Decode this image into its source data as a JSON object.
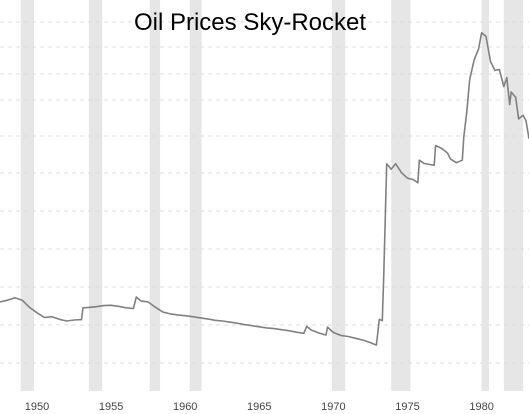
{
  "chart_data": {
    "type": "line",
    "title": "Oil Prices Sky-Rocket",
    "xlabel": "",
    "ylabel": "",
    "xlim": [
      1947.5,
      1983.2
    ],
    "ylim": [
      0,
      100
    ],
    "grid": true,
    "line_color": "#808080",
    "recession_color": "#e6e6e6",
    "grid_color": "#dddddd",
    "x_ticks": [
      {
        "value": 1950,
        "label": "1950"
      },
      {
        "value": 1955,
        "label": "1955"
      },
      {
        "value": 1960,
        "label": "1960"
      },
      {
        "value": 1965,
        "label": "1965"
      },
      {
        "value": 1970,
        "label": "1970"
      },
      {
        "value": 1975,
        "label": "1975"
      },
      {
        "value": 1980,
        "label": "1980"
      }
    ],
    "recessions": [
      [
        1948.9,
        1949.8
      ],
      [
        1953.5,
        1954.4
      ],
      [
        1957.6,
        1958.3
      ],
      [
        1960.3,
        1961.1
      ],
      [
        1969.9,
        1970.8
      ],
      [
        1973.9,
        1975.2
      ],
      [
        1980.0,
        1980.5
      ],
      [
        1981.5,
        1982.8
      ]
    ],
    "series": [
      {
        "values": [
          [
            1947.5,
            22.0
          ],
          [
            1948.0,
            22.5
          ],
          [
            1948.5,
            23.2
          ],
          [
            1949.0,
            22.5
          ],
          [
            1949.5,
            20.5
          ],
          [
            1950.0,
            19.0
          ],
          [
            1950.5,
            17.7
          ],
          [
            1951.0,
            17.9
          ],
          [
            1951.5,
            17.2
          ],
          [
            1952.0,
            16.7
          ],
          [
            1952.5,
            17.0
          ],
          [
            1953.0,
            17.1
          ],
          [
            1953.1,
            20.4
          ],
          [
            1953.5,
            20.5
          ],
          [
            1954.0,
            20.7
          ],
          [
            1954.5,
            21.0
          ],
          [
            1955.0,
            21.1
          ],
          [
            1955.5,
            20.8
          ],
          [
            1956.0,
            20.4
          ],
          [
            1956.5,
            20.2
          ],
          [
            1956.7,
            23.4
          ],
          [
            1957.0,
            22.3
          ],
          [
            1957.5,
            22.0
          ],
          [
            1958.0,
            20.5
          ],
          [
            1958.5,
            19.2
          ],
          [
            1959.0,
            18.7
          ],
          [
            1959.5,
            18.4
          ],
          [
            1960.0,
            18.2
          ],
          [
            1960.5,
            17.9
          ],
          [
            1961.0,
            17.6
          ],
          [
            1961.5,
            17.3
          ],
          [
            1962.0,
            16.9
          ],
          [
            1962.5,
            16.7
          ],
          [
            1963.0,
            16.4
          ],
          [
            1963.5,
            16.1
          ],
          [
            1964.0,
            15.7
          ],
          [
            1964.5,
            15.4
          ],
          [
            1965.0,
            15.1
          ],
          [
            1965.5,
            14.8
          ],
          [
            1966.0,
            14.6
          ],
          [
            1966.5,
            14.3
          ],
          [
            1967.0,
            14.0
          ],
          [
            1967.5,
            13.6
          ],
          [
            1968.0,
            13.3
          ],
          [
            1968.2,
            15.2
          ],
          [
            1968.5,
            14.2
          ],
          [
            1969.0,
            13.4
          ],
          [
            1969.5,
            12.8
          ],
          [
            1969.6,
            15.0
          ],
          [
            1970.0,
            13.5
          ],
          [
            1970.5,
            12.7
          ],
          [
            1971.0,
            12.4
          ],
          [
            1971.5,
            11.9
          ],
          [
            1972.0,
            11.4
          ],
          [
            1972.5,
            10.7
          ],
          [
            1972.9,
            10.0
          ],
          [
            1973.1,
            17.2
          ],
          [
            1973.3,
            16.8
          ],
          [
            1973.4,
            30.0
          ],
          [
            1973.6,
            60.5
          ],
          [
            1973.9,
            59.0
          ],
          [
            1974.2,
            60.5
          ],
          [
            1974.6,
            58.0
          ],
          [
            1975.0,
            56.5
          ],
          [
            1975.4,
            56.1
          ],
          [
            1975.7,
            55.2
          ],
          [
            1975.8,
            61.5
          ],
          [
            1976.1,
            60.6
          ],
          [
            1976.5,
            60.3
          ],
          [
            1976.8,
            60.1
          ],
          [
            1976.9,
            65.6
          ],
          [
            1977.3,
            64.8
          ],
          [
            1977.7,
            63.5
          ],
          [
            1977.9,
            61.8
          ],
          [
            1978.3,
            60.8
          ],
          [
            1978.7,
            61.5
          ],
          [
            1978.8,
            68.0
          ],
          [
            1979.0,
            75.0
          ],
          [
            1979.2,
            84.0
          ],
          [
            1979.5,
            89.5
          ],
          [
            1979.8,
            92.5
          ],
          [
            1980.0,
            97.0
          ],
          [
            1980.3,
            96.0
          ],
          [
            1980.6,
            89.0
          ],
          [
            1980.9,
            86.5
          ],
          [
            1981.2,
            86.8
          ],
          [
            1981.5,
            82.0
          ],
          [
            1981.7,
            84.5
          ],
          [
            1981.9,
            77.0
          ],
          [
            1982.0,
            80.5
          ],
          [
            1982.3,
            79.0
          ],
          [
            1982.5,
            73.0
          ],
          [
            1982.8,
            74.0
          ],
          [
            1983.0,
            72.5
          ],
          [
            1983.2,
            67.5
          ]
        ]
      }
    ]
  }
}
